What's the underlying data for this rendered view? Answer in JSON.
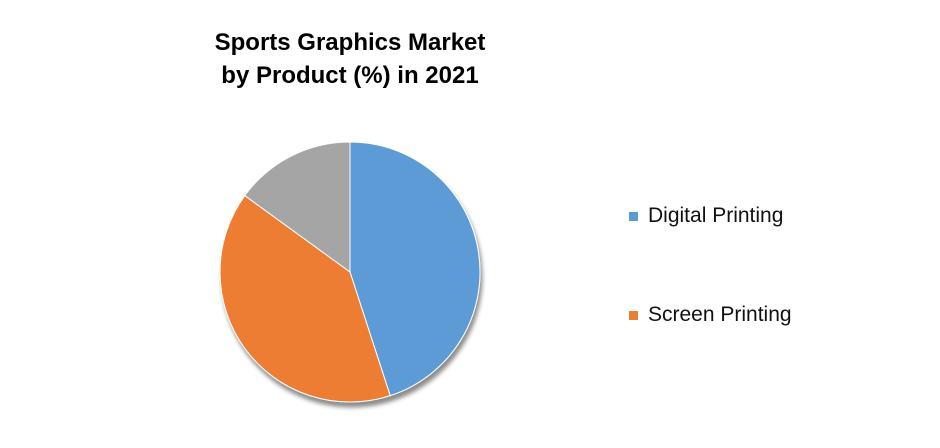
{
  "chart_data": {
    "type": "pie",
    "title_lines": [
      "Sports Graphics Market",
      "by Product (%) in 2021"
    ],
    "series": [
      {
        "name": "Digital Printing",
        "value": 45,
        "color": "#5B9BD5"
      },
      {
        "name": "Screen Printing",
        "value": 40,
        "color": "#ED7D31"
      },
      {
        "value": 15,
        "color": "#A5A5A5"
      }
    ],
    "start_angle": "12 o'clock, clockwise",
    "legend_position": "right"
  }
}
